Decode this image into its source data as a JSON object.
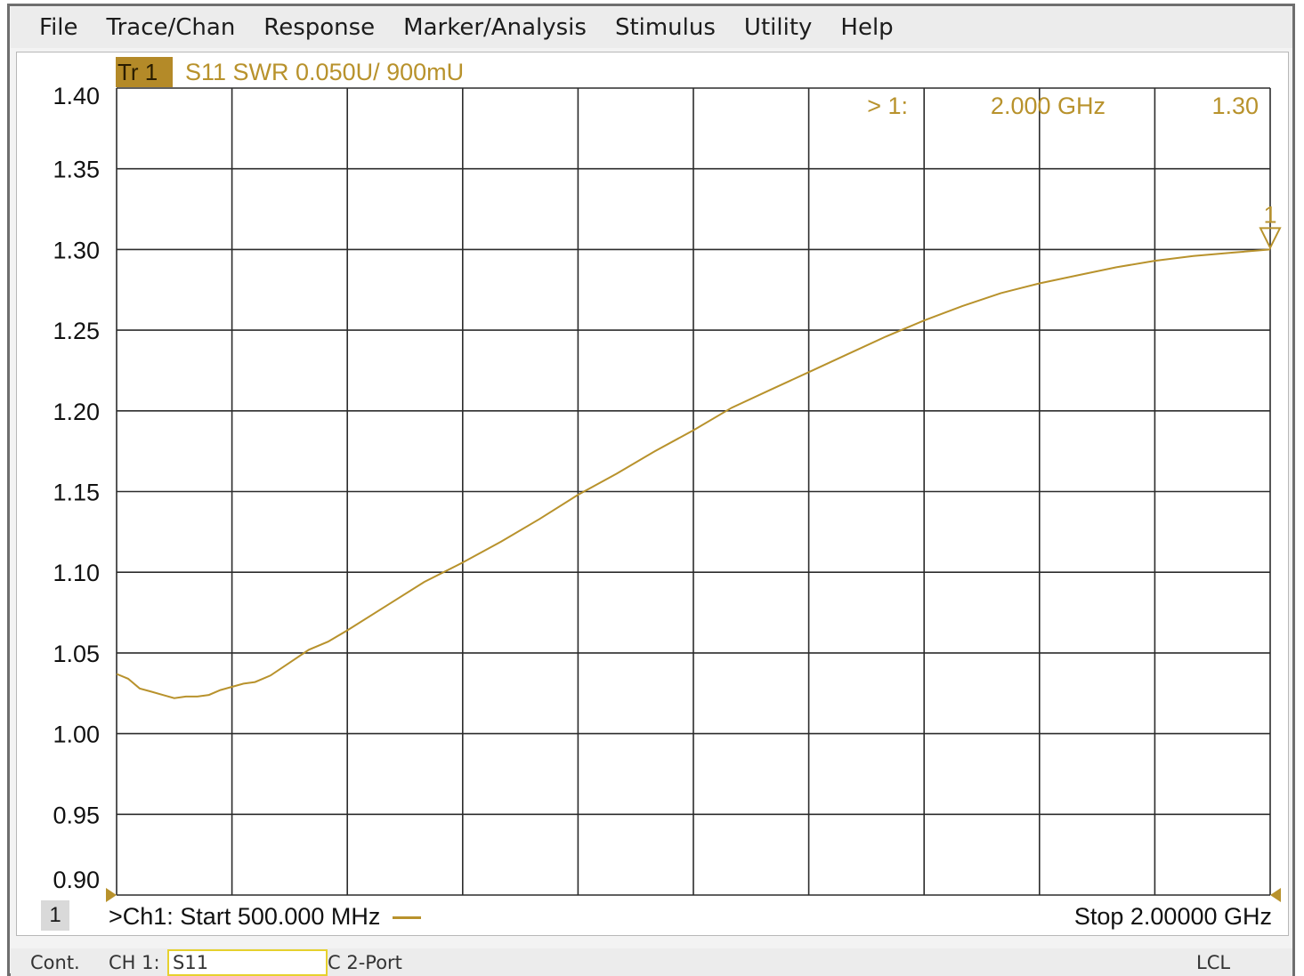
{
  "menu": [
    "File",
    "Trace/Chan",
    "Response",
    "Marker/Analysis",
    "Stimulus",
    "Utility",
    "Help"
  ],
  "trace": {
    "tag": "Tr 1",
    "info": "S11 SWR 0.050U/  900mU",
    "color": "#b8922c"
  },
  "marker": {
    "label": "> 1:",
    "frequency": "2.000 GHz",
    "value": "1.30",
    "number": "1",
    "x_hz": 2000000000,
    "y": 1.3
  },
  "footer": {
    "channel_chip": "1",
    "start": ">Ch1: Start  500.000 MHz",
    "stop": "Stop  2.00000 GHz"
  },
  "status": {
    "mode": "Cont.",
    "channel": "CH 1:",
    "parameter": "S11",
    "calibration": "C  2-Port",
    "remote": "LCL"
  },
  "chart_data": {
    "type": "line",
    "xlim": [
      500,
      2000
    ],
    "ylim": [
      0.9,
      1.4
    ],
    "ytick_labels": [
      "1.40",
      "1.35",
      "1.30",
      "1.25",
      "1.20",
      "1.15",
      "1.10",
      "1.05",
      "1.00",
      "0.95",
      "0.90"
    ],
    "grid": true,
    "series": [
      {
        "x": [
          500,
          515,
          530,
          545,
          560,
          575,
          590,
          605,
          620,
          635,
          650,
          665,
          680,
          700,
          725,
          750,
          775,
          800,
          850,
          900,
          950,
          1000,
          1050,
          1100,
          1150,
          1200,
          1250,
          1300,
          1350,
          1400,
          1450,
          1500,
          1550,
          1600,
          1650,
          1700,
          1750,
          1800,
          1850,
          1900,
          1950,
          2000
        ],
        "y": [
          1.037,
          1.034,
          1.028,
          1.026,
          1.024,
          1.022,
          1.023,
          1.023,
          1.024,
          1.027,
          1.029,
          1.031,
          1.032,
          1.036,
          1.044,
          1.052,
          1.057,
          1.064,
          1.079,
          1.094,
          1.106,
          1.119,
          1.133,
          1.148,
          1.161,
          1.175,
          1.188,
          1.202,
          1.213,
          1.224,
          1.235,
          1.246,
          1.256,
          1.265,
          1.273,
          1.279,
          1.284,
          1.289,
          1.293,
          1.296,
          1.298,
          1.3
        ]
      }
    ]
  }
}
